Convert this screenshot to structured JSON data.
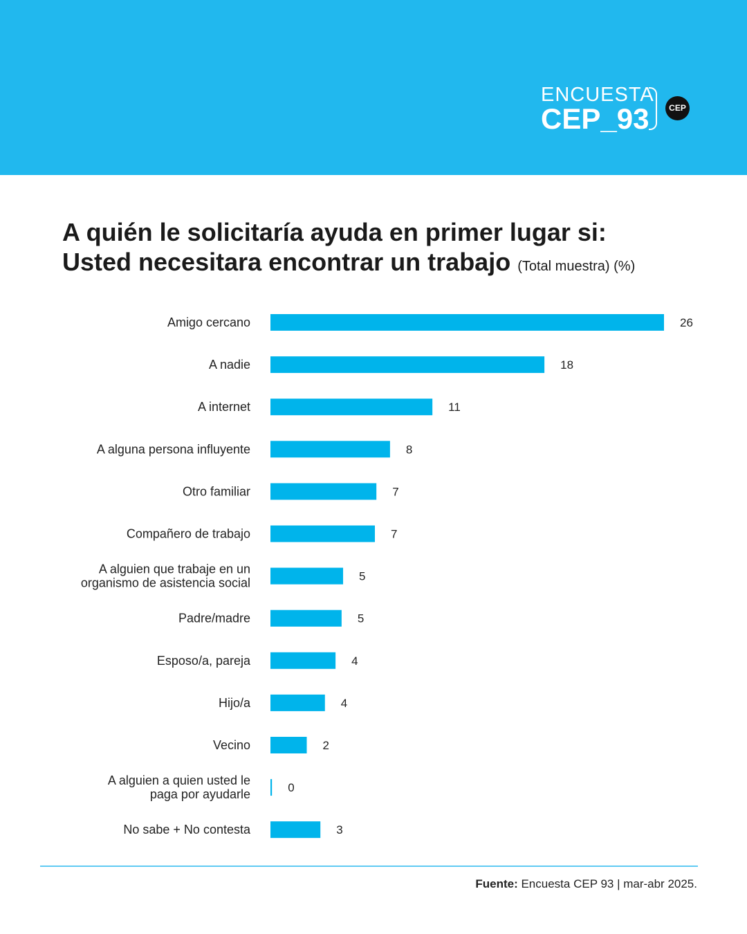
{
  "brand": {
    "line1": "ENCUESTA",
    "line2": "CEP_93",
    "badge": "CEP"
  },
  "title": {
    "line1": "A quién le solicitaría ayuda en primer lugar si:",
    "line2": "Usted necesitara encontrar un trabajo",
    "suffix": "(Total muestra) (%)"
  },
  "source": {
    "label": "Fuente:",
    "text": "Encuesta CEP 93 | mar-abr 2025."
  },
  "colors": {
    "header": "#21b8ee",
    "bar": "#00b4eb",
    "footer_line": "#5fcaf3"
  },
  "chart_data": {
    "type": "bar",
    "orientation": "horizontal",
    "categories": [
      "Amigo cercano",
      "A nadie",
      "A internet",
      "A alguna persona influyente",
      "Otro familiar",
      "Compañero de trabajo",
      "A alguien que trabaje en un organismo de asistencia social",
      "Padre/madre",
      "Esposo/a, pareja",
      "Hijo/a",
      "Vecino",
      "A alguien a quien usted le paga por ayudarle",
      "No sabe + No contesta"
    ],
    "category_lines": [
      [
        "Amigo cercano"
      ],
      [
        "A nadie"
      ],
      [
        "A internet"
      ],
      [
        "A alguna persona influyente"
      ],
      [
        "Otro familiar"
      ],
      [
        "Compañero de trabajo"
      ],
      [
        "A alguien que trabaje en un",
        "organismo de asistencia social"
      ],
      [
        "Padre/madre"
      ],
      [
        "Esposo/a, pareja"
      ],
      [
        "Hijo/a"
      ],
      [
        "Vecino"
      ],
      [
        "A alguien a quien usted le",
        "paga por ayudarle"
      ],
      [
        "No sabe + No contesta"
      ]
    ],
    "values": [
      26,
      18,
      11,
      8,
      7,
      7,
      5,
      5,
      4,
      4,
      2,
      0,
      3
    ],
    "bar_lengths": [
      26,
      18.1,
      10.7,
      7.9,
      7.0,
      6.9,
      4.8,
      4.7,
      4.3,
      3.6,
      2.4,
      0.1,
      3.3
    ],
    "xlim": [
      0,
      26
    ],
    "grid": false,
    "legend": "none"
  }
}
